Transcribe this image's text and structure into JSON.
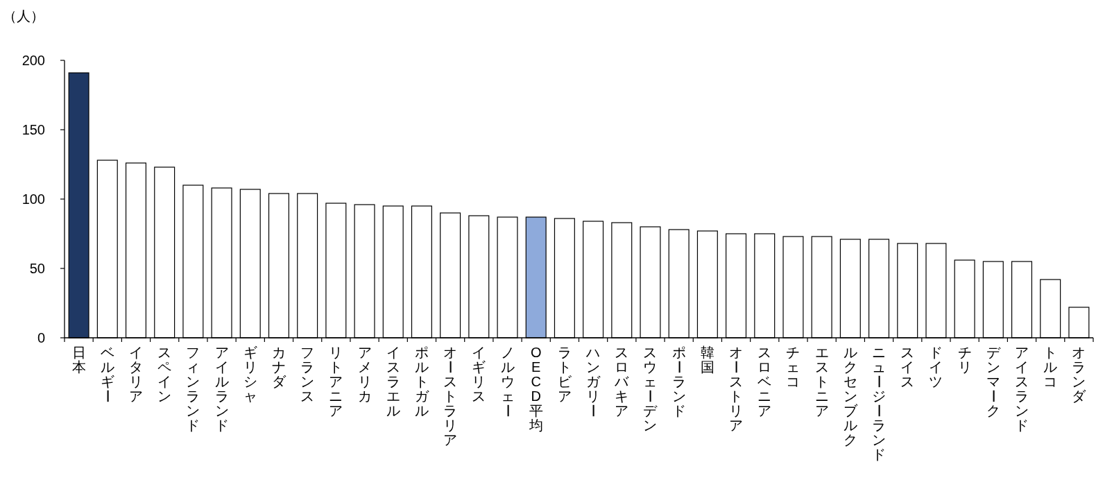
{
  "chart_data": {
    "type": "bar",
    "ylabel": "（人）",
    "categories": [
      "日本",
      "ベルギー",
      "イタリア",
      "スペイン",
      "フィンランド",
      "アイルランド",
      "ギリシャ",
      "カナダ",
      "フランス",
      "リトアニア",
      "アメリカ",
      "イスラエル",
      "ポルトガル",
      "オーストラリア",
      "イギリス",
      "ノルウェー",
      "OECD平均",
      "ラトビア",
      "ハンガリー",
      "スロバキア",
      "スウェーデン",
      "ポーランド",
      "韓国",
      "オーストリア",
      "スロベニア",
      "チェコ",
      "エストニア",
      "ルクセンブルク",
      "ニュージーランド",
      "スイス",
      "ドイツ",
      "チリ",
      "デンマーク",
      "アイスランド",
      "トルコ",
      "オランダ"
    ],
    "values": [
      191,
      128,
      126,
      123,
      110,
      108,
      107,
      104,
      104,
      97,
      96,
      95,
      95,
      90,
      88,
      87,
      87,
      86,
      84,
      83,
      80,
      78,
      77,
      75,
      75,
      73,
      73,
      71,
      71,
      68,
      68,
      56,
      55,
      55,
      42,
      22
    ],
    "colors": [
      "#1f3864",
      "#ffffff",
      "#ffffff",
      "#ffffff",
      "#ffffff",
      "#ffffff",
      "#ffffff",
      "#ffffff",
      "#ffffff",
      "#ffffff",
      "#ffffff",
      "#ffffff",
      "#ffffff",
      "#ffffff",
      "#ffffff",
      "#ffffff",
      "#8eaadb",
      "#ffffff",
      "#ffffff",
      "#ffffff",
      "#ffffff",
      "#ffffff",
      "#ffffff",
      "#ffffff",
      "#ffffff",
      "#ffffff",
      "#ffffff",
      "#ffffff",
      "#ffffff",
      "#ffffff",
      "#ffffff",
      "#ffffff",
      "#ffffff",
      "#ffffff",
      "#ffffff",
      "#ffffff"
    ],
    "ylim": [
      0,
      200
    ],
    "yticks": [
      0,
      50,
      100,
      150,
      200
    ]
  }
}
